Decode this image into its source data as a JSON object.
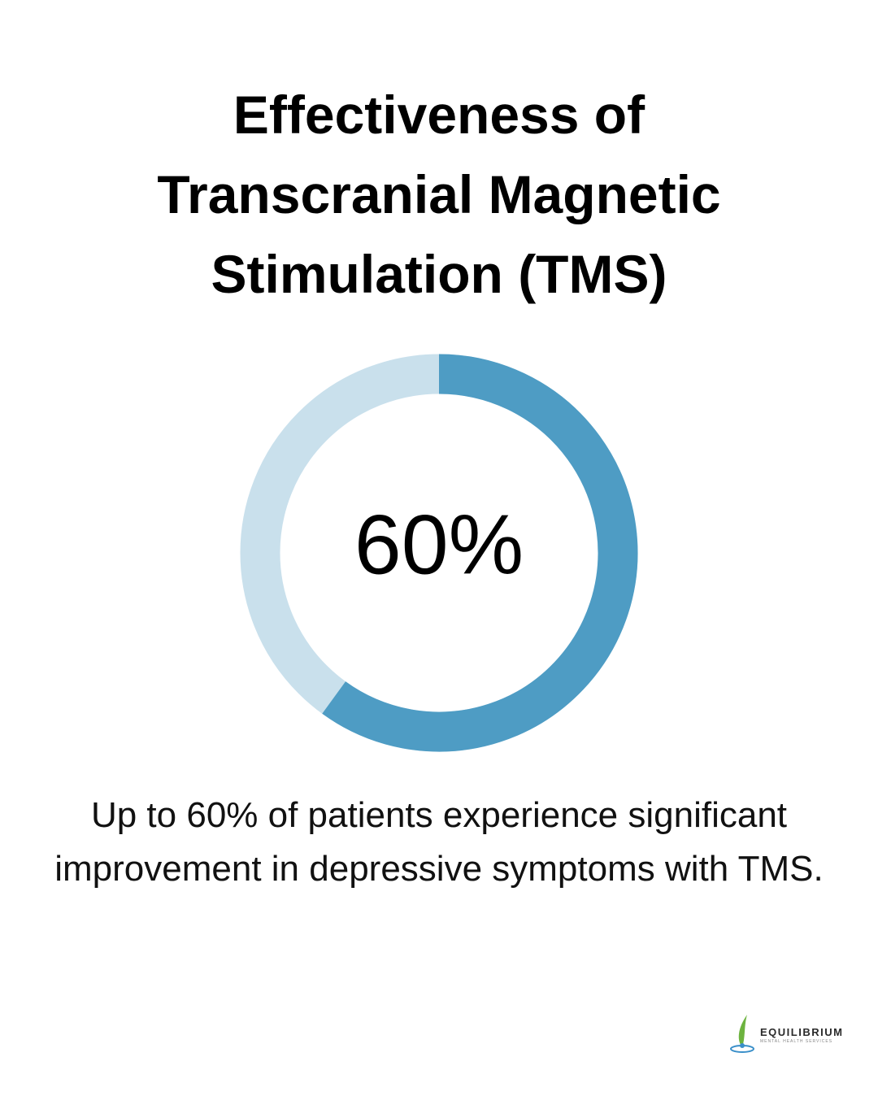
{
  "chart_data": {
    "type": "donut",
    "title": "Effectiveness of Transcranial Magnetic Stimulation (TMS)",
    "values": [
      60
    ],
    "value_labels": [
      "60%"
    ],
    "color": "#4e9cc4",
    "track_color": "#c9e0ec",
    "caption": "Up to 60% of patients experience significant improvement in depressive symptoms with TMS."
  },
  "logo": {
    "name": "EQUILIBRIUM",
    "tagline": "MENTAL HEALTH SERVICES"
  }
}
